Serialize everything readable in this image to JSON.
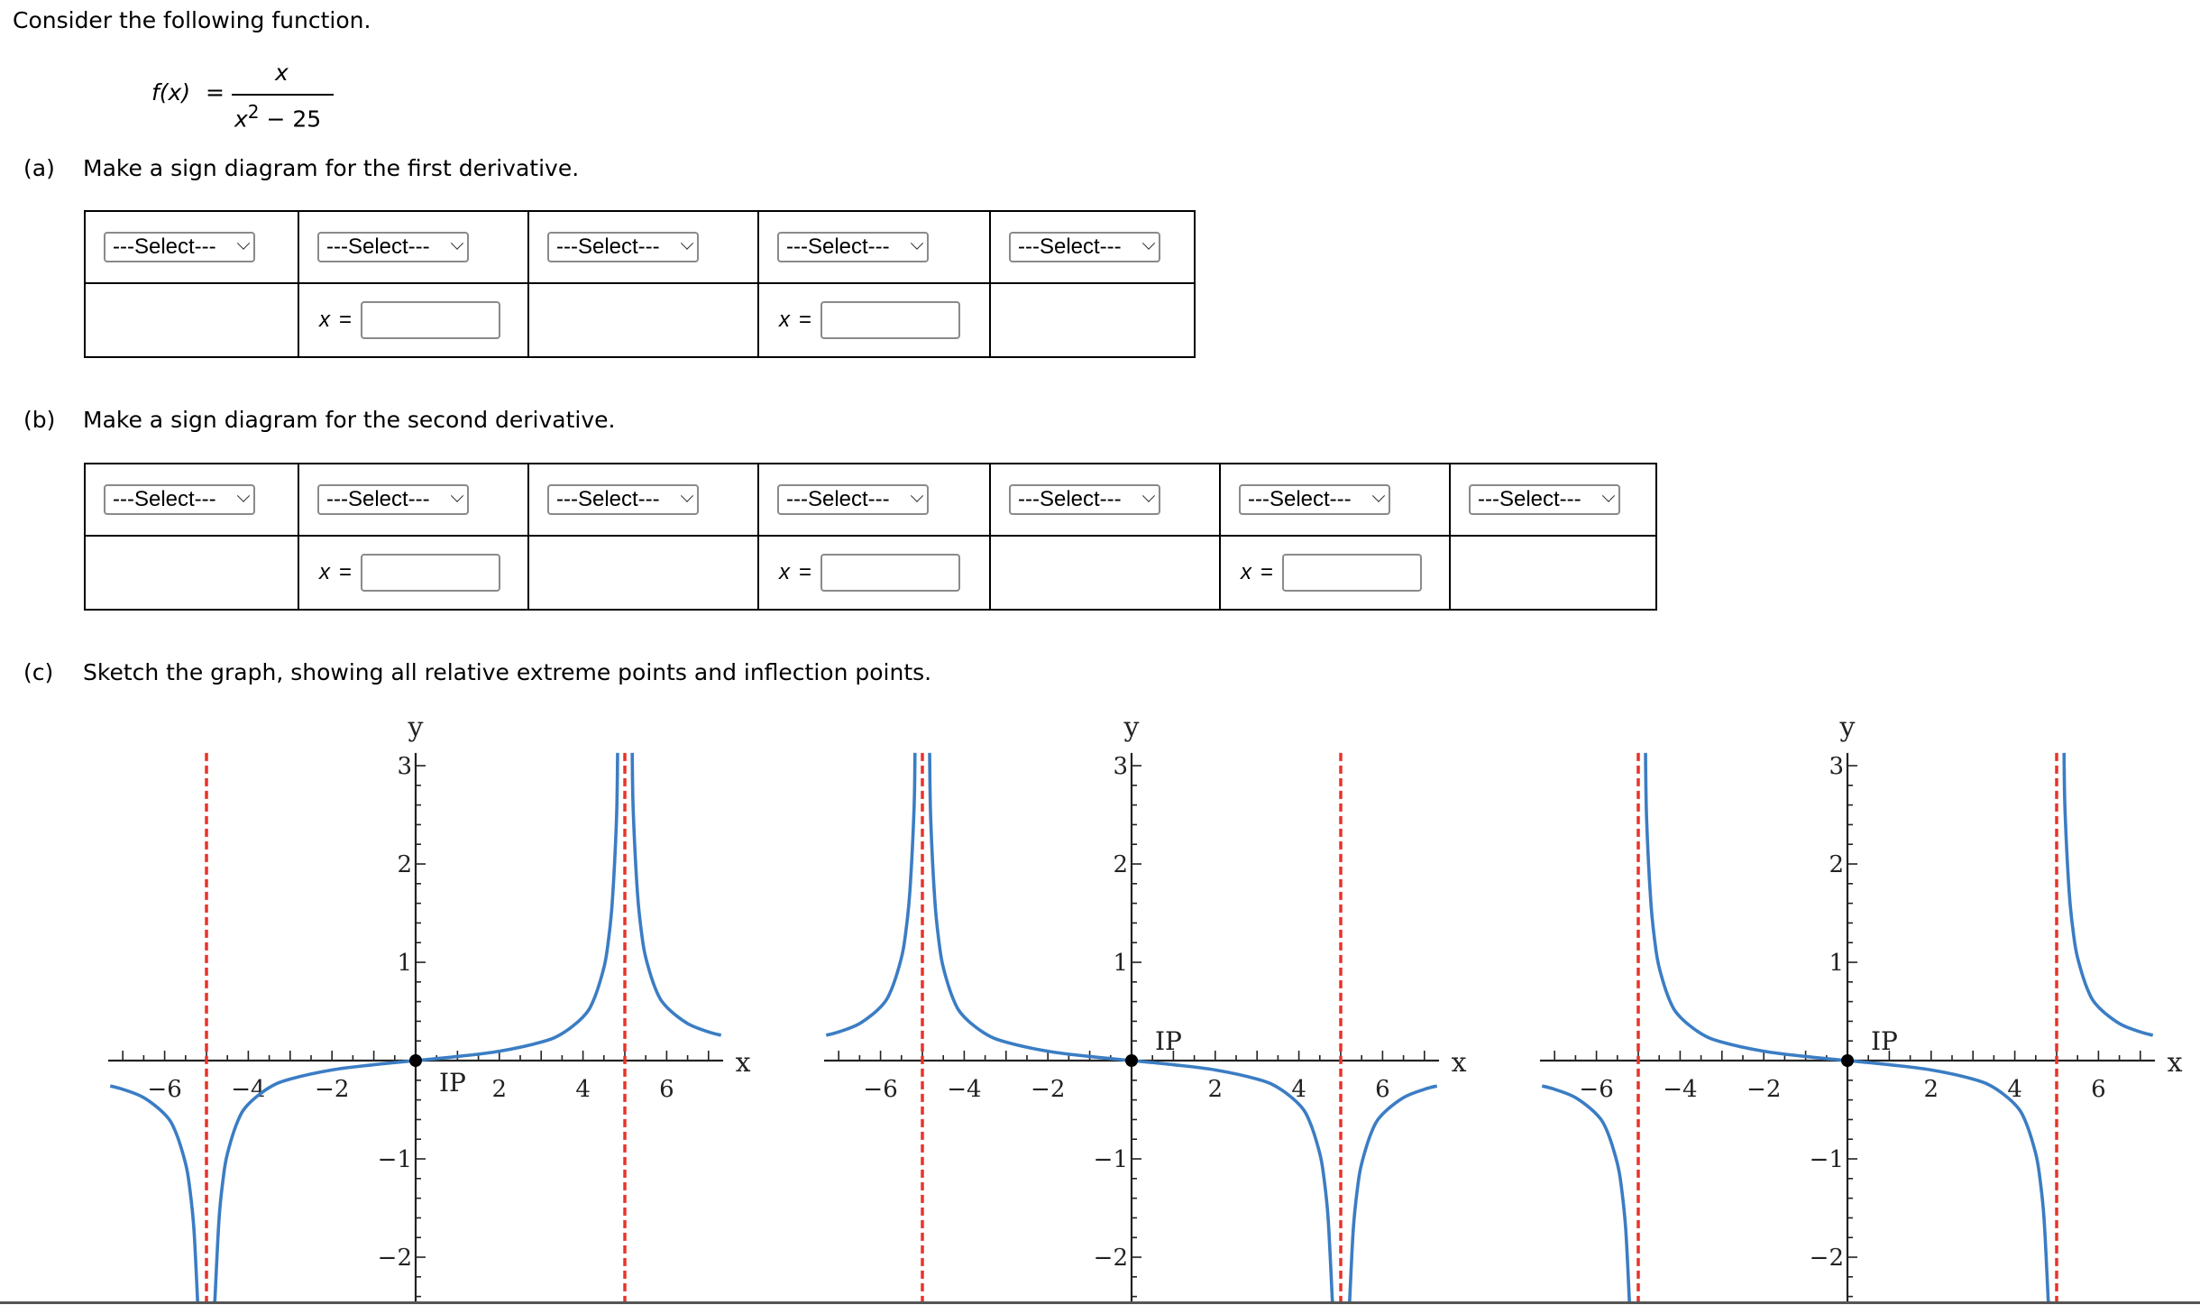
{
  "intro": "Consider the following function.",
  "function": {
    "lhs": "f(x)",
    "eq": "=",
    "numerator": "x",
    "denominator_base": "x",
    "denominator_exp": "2",
    "denominator_rest": " − 25"
  },
  "part_a": {
    "label": "(a)",
    "text": "Make a sign diagram for the first derivative.",
    "selects": [
      "---Select---",
      "---Select---",
      "---Select---",
      "---Select---",
      "---Select---"
    ],
    "x_label": "x",
    "eq": "=",
    "inputs": [
      "",
      ""
    ]
  },
  "part_b": {
    "label": "(b)",
    "text": "Make a sign diagram for the second derivative.",
    "selects": [
      "---Select---",
      "---Select---",
      "---Select---",
      "---Select---",
      "---Select---",
      "---Select---",
      "---Select---"
    ],
    "x_label": "x",
    "eq": "=",
    "inputs": [
      "",
      "",
      ""
    ]
  },
  "part_c": {
    "label": "(c)",
    "text": "Sketch the graph, showing all relative extreme points and inflection points."
  },
  "colors": {
    "curve": "#3b7dc4",
    "asymptote": "#e8332a",
    "axis": "#222222"
  },
  "chart_data": [
    {
      "type": "line",
      "xlabel": "x",
      "ylabel": "y",
      "xlim": [
        -7.35,
        7.35
      ],
      "ylim": [
        -2.45,
        3.13
      ],
      "x_ticks": [
        -6,
        -4,
        -2,
        2,
        4,
        6
      ],
      "y_ticks": [
        -2,
        -1,
        1,
        2,
        3
      ],
      "tick_labels_x": [
        "−6",
        "−4",
        "−2",
        "2",
        "4",
        "6"
      ],
      "tick_labels_y": [
        "−2",
        "−1",
        "1",
        "2",
        "3"
      ],
      "asymptotes_x": [
        -5,
        5
      ],
      "point": {
        "x": 0,
        "y": 0,
        "label": "IP",
        "label_pos": "below-right"
      },
      "segments": [
        [
          [
            -7.3,
            -0.258
          ],
          [
            -7,
            -0.292
          ],
          [
            -6.5,
            -0.377
          ],
          [
            -6,
            -0.545
          ],
          [
            -5.75,
            -0.713
          ],
          [
            -5.5,
            -1.048
          ],
          [
            -5.4,
            -1.298
          ],
          [
            -5.3,
            -1.715
          ],
          [
            -5.2,
            -2.549
          ],
          [
            -5.1,
            -5.05
          ]
        ],
        [
          [
            -4.9,
            -4.949
          ],
          [
            -4.8,
            -2.449
          ],
          [
            -4.7,
            -1.615
          ],
          [
            -4.6,
            -1.198
          ],
          [
            -4.5,
            -0.947
          ],
          [
            -4.25,
            -0.613
          ],
          [
            -4,
            -0.444
          ],
          [
            -3.5,
            -0.275
          ],
          [
            -3,
            -0.188
          ],
          [
            -2,
            -0.095
          ],
          [
            -1,
            -0.042
          ],
          [
            0,
            0
          ],
          [
            1,
            0.042
          ],
          [
            2,
            0.095
          ],
          [
            3,
            0.188
          ],
          [
            3.5,
            0.275
          ],
          [
            4,
            0.444
          ],
          [
            4.25,
            0.613
          ],
          [
            4.5,
            0.947
          ],
          [
            4.6,
            1.198
          ],
          [
            4.7,
            1.615
          ],
          [
            4.8,
            2.449
          ],
          [
            4.9,
            4.949
          ]
        ],
        [
          [
            5.1,
            5.05
          ],
          [
            5.2,
            2.549
          ],
          [
            5.3,
            1.715
          ],
          [
            5.4,
            1.298
          ],
          [
            5.5,
            1.048
          ],
          [
            5.75,
            0.713
          ],
          [
            6,
            0.545
          ],
          [
            6.5,
            0.377
          ],
          [
            7,
            0.292
          ],
          [
            7.3,
            0.258
          ]
        ]
      ]
    },
    {
      "type": "line",
      "xlabel": "x",
      "ylabel": "y",
      "xlim": [
        -7.35,
        7.35
      ],
      "ylim": [
        -2.45,
        3.13
      ],
      "x_ticks": [
        -6,
        -4,
        -2,
        2,
        4,
        6
      ],
      "y_ticks": [
        -2,
        -1,
        1,
        2,
        3
      ],
      "tick_labels_x": [
        "−6",
        "−4",
        "−2",
        "2",
        "4",
        "6"
      ],
      "tick_labels_y": [
        "−2",
        "−1",
        "1",
        "2",
        "3"
      ],
      "asymptotes_x": [
        -5,
        5
      ],
      "point": {
        "x": 0,
        "y": 0,
        "label": "IP",
        "label_pos": "above-right"
      },
      "segments": [
        [
          [
            -7.3,
            0.258
          ],
          [
            -7,
            0.292
          ],
          [
            -6.5,
            0.377
          ],
          [
            -6,
            0.545
          ],
          [
            -5.75,
            0.713
          ],
          [
            -5.5,
            1.048
          ],
          [
            -5.4,
            1.298
          ],
          [
            -5.3,
            1.715
          ],
          [
            -5.2,
            2.549
          ],
          [
            -5.1,
            5.05
          ]
        ],
        [
          [
            -4.9,
            4.949
          ],
          [
            -4.8,
            2.449
          ],
          [
            -4.7,
            1.615
          ],
          [
            -4.6,
            1.198
          ],
          [
            -4.5,
            0.947
          ],
          [
            -4.25,
            0.613
          ],
          [
            -4,
            0.444
          ],
          [
            -3.5,
            0.275
          ],
          [
            -3,
            0.188
          ],
          [
            -2,
            0.095
          ],
          [
            -1,
            0.042
          ],
          [
            0,
            0
          ],
          [
            1,
            -0.042
          ],
          [
            2,
            -0.095
          ],
          [
            3,
            -0.188
          ],
          [
            3.5,
            -0.275
          ],
          [
            4,
            -0.444
          ],
          [
            4.25,
            -0.613
          ],
          [
            4.5,
            -0.947
          ],
          [
            4.6,
            -1.198
          ],
          [
            4.7,
            -1.615
          ],
          [
            4.8,
            -2.449
          ],
          [
            4.9,
            -4.949
          ]
        ],
        [
          [
            5.1,
            -5.05
          ],
          [
            5.2,
            -2.549
          ],
          [
            5.3,
            -1.715
          ],
          [
            5.4,
            -1.298
          ],
          [
            5.5,
            -1.048
          ],
          [
            5.75,
            -0.713
          ],
          [
            6,
            -0.545
          ],
          [
            6.5,
            -0.377
          ],
          [
            7,
            -0.292
          ],
          [
            7.3,
            -0.258
          ]
        ]
      ]
    },
    {
      "type": "line",
      "xlabel": "x",
      "ylabel": "y",
      "xlim": [
        -7.35,
        7.35
      ],
      "ylim": [
        -2.45,
        3.13
      ],
      "x_ticks": [
        -6,
        -4,
        -2,
        2,
        4,
        6
      ],
      "y_ticks": [
        -2,
        -1,
        1,
        2,
        3
      ],
      "tick_labels_x": [
        "−6",
        "−4",
        "−2",
        "2",
        "4",
        "6"
      ],
      "tick_labels_y": [
        "−2",
        "−1",
        "1",
        "2",
        "3"
      ],
      "asymptotes_x": [
        -5,
        5
      ],
      "point": {
        "x": 0,
        "y": 0,
        "label": "IP",
        "label_pos": "above-right"
      },
      "segments": [
        [
          [
            -7.3,
            -0.258
          ],
          [
            -7,
            -0.292
          ],
          [
            -6.5,
            -0.377
          ],
          [
            -6,
            -0.545
          ],
          [
            -5.75,
            -0.713
          ],
          [
            -5.5,
            -1.048
          ],
          [
            -5.4,
            -1.298
          ],
          [
            -5.3,
            -1.715
          ],
          [
            -5.2,
            -2.549
          ],
          [
            -5.1,
            -5.05
          ]
        ],
        [
          [
            -4.9,
            4.949
          ],
          [
            -4.8,
            2.449
          ],
          [
            -4.7,
            1.615
          ],
          [
            -4.6,
            1.198
          ],
          [
            -4.5,
            0.947
          ],
          [
            -4.25,
            0.613
          ],
          [
            -4,
            0.444
          ],
          [
            -3.5,
            0.275
          ],
          [
            -3,
            0.188
          ],
          [
            -2,
            0.095
          ],
          [
            -1,
            0.042
          ],
          [
            0,
            0
          ],
          [
            1,
            -0.042
          ],
          [
            2,
            -0.095
          ],
          [
            3,
            -0.188
          ],
          [
            3.5,
            -0.275
          ],
          [
            4,
            -0.444
          ],
          [
            4.25,
            -0.613
          ],
          [
            4.5,
            -0.947
          ],
          [
            4.6,
            -1.198
          ],
          [
            4.7,
            -1.615
          ],
          [
            4.8,
            -2.449
          ],
          [
            4.9,
            -4.949
          ]
        ],
        [
          [
            5.1,
            5.05
          ],
          [
            5.2,
            2.549
          ],
          [
            5.3,
            1.715
          ],
          [
            5.4,
            1.298
          ],
          [
            5.5,
            1.048
          ],
          [
            5.75,
            0.713
          ],
          [
            6,
            0.545
          ],
          [
            6.5,
            0.377
          ],
          [
            7,
            0.292
          ],
          [
            7.3,
            0.258
          ]
        ]
      ]
    }
  ]
}
